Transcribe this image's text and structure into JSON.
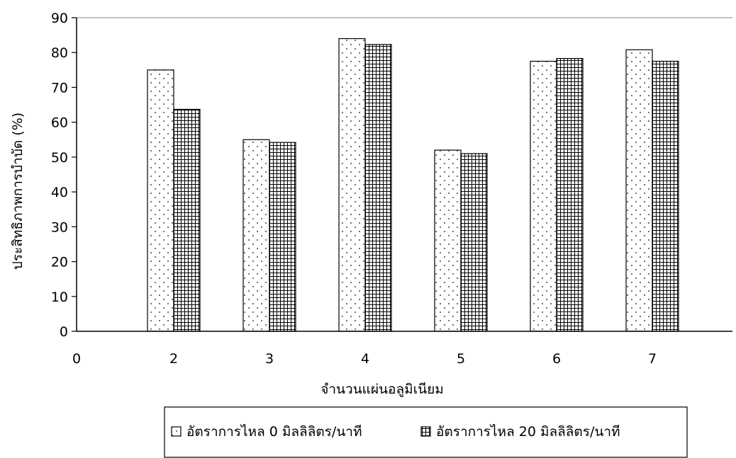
{
  "chart_data": {
    "type": "bar",
    "categories": [
      "2",
      "3",
      "4",
      "5",
      "6",
      "7"
    ],
    "x_ticks": [
      "0",
      "2",
      "3",
      "4",
      "5",
      "6",
      "7"
    ],
    "series": [
      {
        "name": "อัตราการไหล 0 มิลลิลิตร/นาที",
        "values": [
          75,
          55,
          84,
          52,
          77.5,
          80.8
        ],
        "pattern": "dots"
      },
      {
        "name": "อัตราการไหล 20 มิลลิลิตร/นาที",
        "values": [
          63.7,
          54.2,
          82.3,
          51,
          78.3,
          77.5
        ],
        "pattern": "grid"
      }
    ],
    "title": "",
    "xlabel": "จำนวนแผ่นอลูมิเนียม",
    "ylabel": "ประสิทธิภาพการบำบัด (%)",
    "ylim": [
      0,
      90
    ],
    "y_ticks": [
      0,
      10,
      20,
      30,
      40,
      50,
      60,
      70,
      80,
      90
    ],
    "grid": false,
    "legend_position": "bottom"
  }
}
